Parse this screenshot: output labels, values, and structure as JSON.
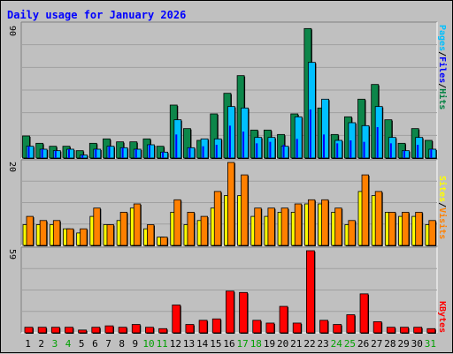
{
  "chart_data": {
    "type": "bar",
    "title": "Daily usage for January 2026",
    "categories": [
      "1",
      "2",
      "3",
      "4",
      "5",
      "6",
      "7",
      "8",
      "9",
      "10",
      "11",
      "12",
      "13",
      "14",
      "15",
      "16",
      "17",
      "18",
      "19",
      "20",
      "21",
      "22",
      "23",
      "24",
      "25",
      "26",
      "27",
      "28",
      "29",
      "30",
      "31"
    ],
    "weekend_days": [
      "3",
      "4",
      "10",
      "11",
      "17",
      "18",
      "24",
      "25",
      "31"
    ],
    "panels": [
      {
        "scale_max_label": "90",
        "ymax": 90,
        "series": [
          {
            "name": "Hits",
            "color": "#008040",
            "values": [
              15,
              10,
              8,
              8,
              5,
              10,
              13,
              11,
              11,
              13,
              8,
              36,
              20,
              12,
              30,
              44,
              56,
              19,
              19,
              16,
              30,
              88,
              34,
              16,
              28,
              40,
              50,
              26,
              10,
              20,
              12
            ]
          },
          {
            "name": "Files",
            "color": "#0000ff",
            "values": [
              8,
              6,
              5,
              6,
              2,
              6,
              8,
              7,
              6,
              9,
              4,
              16,
              7,
              8,
              9,
              22,
              18,
              10,
              11,
              9,
              13,
              33,
              16,
              10,
              12,
              11,
              21,
              10,
              5,
              9,
              6
            ]
          },
          {
            "name": "Pages",
            "color": "#00c0ff",
            "values": [
              8,
              6,
              5,
              6,
              2,
              6,
              8,
              7,
              6,
              9,
              4,
              26,
              7,
              13,
              13,
              35,
              34,
              14,
              14,
              8,
              28,
              65,
              40,
              12,
              24,
              22,
              35,
              14,
              5,
              14,
              6
            ]
          }
        ]
      },
      {
        "scale_max_label": "20",
        "ymax": 20,
        "series": [
          {
            "name": "Visits",
            "color": "#ff8000",
            "values": [
              7,
              6,
              6,
              4,
              4,
              9,
              5,
              8,
              10,
              5,
              2,
              11,
              8,
              7,
              13,
              20,
              17,
              9,
              9,
              9,
              10,
              11,
              11,
              9,
              6,
              17,
              13,
              8,
              8,
              8,
              6
            ]
          },
          {
            "name": "Sites",
            "color": "#ffff00",
            "values": [
              5,
              5,
              5,
              4,
              3,
              7,
              5,
              6,
              9,
              4,
              2,
              8,
              5,
              6,
              9,
              12,
              12,
              7,
              7,
              8,
              8,
              10,
              10,
              8,
              5,
              13,
              12,
              8,
              7,
              7,
              5
            ]
          }
        ]
      },
      {
        "scale_max_label": "59",
        "ymax": 59,
        "series": [
          {
            "name": "KBytes",
            "color": "#ff0000",
            "values": [
              4,
              4,
              4,
              4,
              2,
              4,
              5,
              4,
              6,
              4,
              3,
              20,
              6,
              9,
              10,
              30,
              29,
              9,
              7,
              19,
              7,
              59,
              9,
              6,
              13,
              28,
              8,
              4,
              4,
              4,
              3
            ]
          }
        ]
      }
    ]
  },
  "legends": {
    "top": [
      {
        "text": "Pages",
        "color": "#00c0ff"
      },
      {
        "text": "/",
        "color": "#000000"
      },
      {
        "text": "Files",
        "color": "#0000ff"
      },
      {
        "text": "/",
        "color": "#000000"
      },
      {
        "text": "Hits",
        "color": "#008040"
      }
    ],
    "middle": [
      {
        "text": "Sites",
        "color": "#ffff00"
      },
      {
        "text": "/",
        "color": "#000000"
      },
      {
        "text": "Visits",
        "color": "#ff8000"
      }
    ],
    "bottom": [
      {
        "text": "KBytes",
        "color": "#ff0000"
      }
    ]
  },
  "colors": {
    "background": "#c0c0c0",
    "title": "#0000ff",
    "weekday_label": "#000000",
    "weekend_label": "#00a000"
  }
}
